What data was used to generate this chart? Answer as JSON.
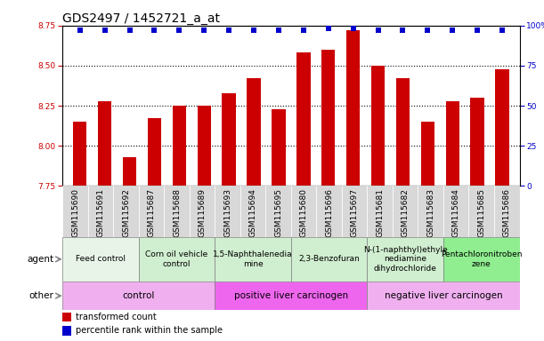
{
  "title": "GDS2497 / 1452721_a_at",
  "samples": [
    "GSM115690",
    "GSM115691",
    "GSM115692",
    "GSM115687",
    "GSM115688",
    "GSM115689",
    "GSM115693",
    "GSM115694",
    "GSM115695",
    "GSM115680",
    "GSM115696",
    "GSM115697",
    "GSM115681",
    "GSM115682",
    "GSM115683",
    "GSM115684",
    "GSM115685",
    "GSM115686"
  ],
  "bar_values": [
    8.15,
    8.28,
    7.93,
    8.17,
    8.25,
    8.25,
    8.33,
    8.42,
    8.23,
    8.58,
    8.6,
    8.72,
    8.5,
    8.42,
    8.15,
    8.28,
    8.3,
    8.48
  ],
  "percentile_values": [
    97,
    97,
    97,
    97,
    97,
    97,
    97,
    97,
    97,
    97,
    98,
    98,
    97,
    97,
    97,
    97,
    97,
    97
  ],
  "bar_color": "#cc0000",
  "dot_color": "#0000cc",
  "ylim_left": [
    7.75,
    8.75
  ],
  "ylim_right": [
    0,
    100
  ],
  "yticks_left": [
    7.75,
    8.0,
    8.25,
    8.5,
    8.75
  ],
  "yticks_right": [
    0,
    25,
    50,
    75,
    100
  ],
  "grid_lines": [
    8.0,
    8.25,
    8.5
  ],
  "xtick_bg_color": "#d8d8d8",
  "agent_groups": [
    {
      "label": "Feed control",
      "start": 0,
      "end": 3,
      "color": "#e8f4e8"
    },
    {
      "label": "Corn oil vehicle\ncontrol",
      "start": 3,
      "end": 6,
      "color": "#d0eed0"
    },
    {
      "label": "1,5-Naphthalenedia\nmine",
      "start": 6,
      "end": 9,
      "color": "#d0eed0"
    },
    {
      "label": "2,3-Benzofuran",
      "start": 9,
      "end": 12,
      "color": "#d0eed0"
    },
    {
      "label": "N-(1-naphthyl)ethyle\nnediamine\ndihydrochloride",
      "start": 12,
      "end": 15,
      "color": "#d0eed0"
    },
    {
      "label": "Pentachloronitroben\nzene",
      "start": 15,
      "end": 18,
      "color": "#90ee90"
    }
  ],
  "other_groups": [
    {
      "label": "control",
      "start": 0,
      "end": 6,
      "color": "#f0b0f0"
    },
    {
      "label": "positive liver carcinogen",
      "start": 6,
      "end": 12,
      "color": "#ee66ee"
    },
    {
      "label": "negative liver carcinogen",
      "start": 12,
      "end": 18,
      "color": "#f0b0f0"
    }
  ],
  "legend_items": [
    {
      "label": "transformed count",
      "color": "#cc0000"
    },
    {
      "label": "percentile rank within the sample",
      "color": "#0000cc"
    }
  ],
  "background_color": "#ffffff",
  "title_fontsize": 10,
  "tick_fontsize": 6.5,
  "annot_fontsize": 7.5,
  "agent_fontsize": 6.5,
  "other_fontsize": 7.5
}
